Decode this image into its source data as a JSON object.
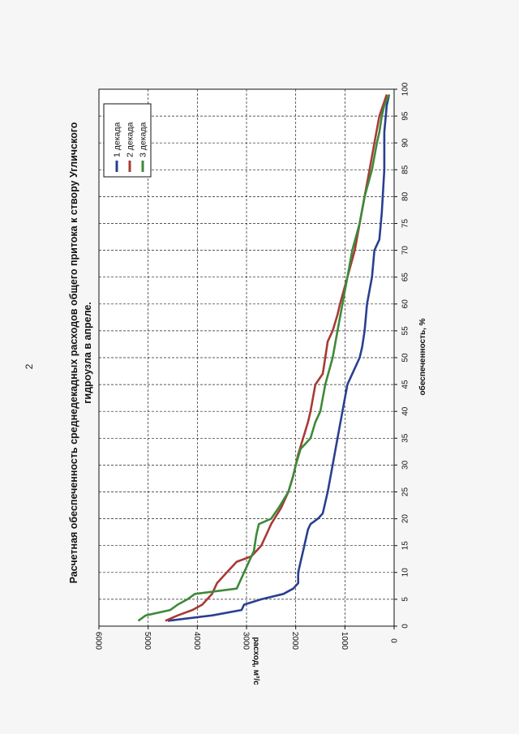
{
  "page": {
    "number": "2"
  },
  "chart_data": {
    "type": "line",
    "title_lines": [
      "Расчетная обеспеченность среднедекадных расходов общего притока к створу Угличского",
      "гидроузла в апреле."
    ],
    "xlabel": "обеспеченность, %",
    "ylabel": "расход, м³/с",
    "xlim": [
      0,
      100
    ],
    "ylim": [
      0,
      6000
    ],
    "xticks": [
      0,
      5,
      10,
      15,
      20,
      25,
      30,
      35,
      40,
      45,
      50,
      55,
      60,
      65,
      70,
      75,
      80,
      85,
      90,
      95,
      100
    ],
    "yticks": [
      0,
      1000,
      2000,
      3000,
      4000,
      5000,
      6000
    ],
    "grid": true,
    "legend_position": "top-right",
    "series": [
      {
        "name": "1 декада",
        "color": "#2b3f8f",
        "points": [
          [
            1,
            4600
          ],
          [
            2,
            3700
          ],
          [
            3,
            3100
          ],
          [
            4,
            3050
          ],
          [
            5,
            2700
          ],
          [
            6,
            2250
          ],
          [
            7,
            2050
          ],
          [
            8,
            1950
          ],
          [
            10,
            1950
          ],
          [
            12,
            1900
          ],
          [
            14,
            1850
          ],
          [
            16,
            1800
          ],
          [
            18,
            1750
          ],
          [
            19,
            1700
          ],
          [
            20,
            1550
          ],
          [
            21,
            1450
          ],
          [
            25,
            1350
          ],
          [
            30,
            1250
          ],
          [
            35,
            1150
          ],
          [
            40,
            1050
          ],
          [
            45,
            950
          ],
          [
            47,
            850
          ],
          [
            50,
            700
          ],
          [
            52,
            650
          ],
          [
            55,
            600
          ],
          [
            60,
            550
          ],
          [
            65,
            450
          ],
          [
            70,
            400
          ],
          [
            72,
            300
          ],
          [
            77,
            250
          ],
          [
            85,
            200
          ],
          [
            92,
            200
          ],
          [
            97,
            150
          ],
          [
            99,
            100
          ]
        ]
      },
      {
        "name": "2 декада",
        "color": "#a83a35",
        "points": [
          [
            1,
            4650
          ],
          [
            2,
            4400
          ],
          [
            3,
            4100
          ],
          [
            4,
            3900
          ],
          [
            6,
            3700
          ],
          [
            8,
            3600
          ],
          [
            10,
            3400
          ],
          [
            12,
            3200
          ],
          [
            13,
            2900
          ],
          [
            15,
            2700
          ],
          [
            17,
            2600
          ],
          [
            19,
            2500
          ],
          [
            22,
            2300
          ],
          [
            25,
            2150
          ],
          [
            28,
            2050
          ],
          [
            30,
            2000
          ],
          [
            32,
            1950
          ],
          [
            35,
            1850
          ],
          [
            38,
            1750
          ],
          [
            40,
            1700
          ],
          [
            45,
            1600
          ],
          [
            47,
            1450
          ],
          [
            50,
            1400
          ],
          [
            53,
            1350
          ],
          [
            55,
            1250
          ],
          [
            58,
            1150
          ],
          [
            60,
            1100
          ],
          [
            65,
            950
          ],
          [
            70,
            800
          ],
          [
            75,
            700
          ],
          [
            80,
            600
          ],
          [
            85,
            500
          ],
          [
            90,
            400
          ],
          [
            95,
            300
          ],
          [
            99,
            150
          ]
        ]
      },
      {
        "name": "3 декада",
        "color": "#3d8a3a",
        "points": [
          [
            1,
            5200
          ],
          [
            2,
            5050
          ],
          [
            3,
            4550
          ],
          [
            4,
            4400
          ],
          [
            5,
            4200
          ],
          [
            6,
            4050
          ],
          [
            7,
            3200
          ],
          [
            10,
            3050
          ],
          [
            12,
            2950
          ],
          [
            14,
            2850
          ],
          [
            17,
            2800
          ],
          [
            19,
            2750
          ],
          [
            20,
            2500
          ],
          [
            22,
            2350
          ],
          [
            25,
            2150
          ],
          [
            28,
            2050
          ],
          [
            30,
            2000
          ],
          [
            33,
            1900
          ],
          [
            35,
            1700
          ],
          [
            38,
            1600
          ],
          [
            40,
            1500
          ],
          [
            45,
            1400
          ],
          [
            50,
            1250
          ],
          [
            55,
            1150
          ],
          [
            60,
            1050
          ],
          [
            65,
            950
          ],
          [
            70,
            850
          ],
          [
            75,
            700
          ],
          [
            80,
            600
          ],
          [
            85,
            450
          ],
          [
            90,
            350
          ],
          [
            92,
            300
          ],
          [
            95,
            250
          ],
          [
            97,
            200
          ],
          [
            99,
            100
          ]
        ]
      }
    ]
  }
}
